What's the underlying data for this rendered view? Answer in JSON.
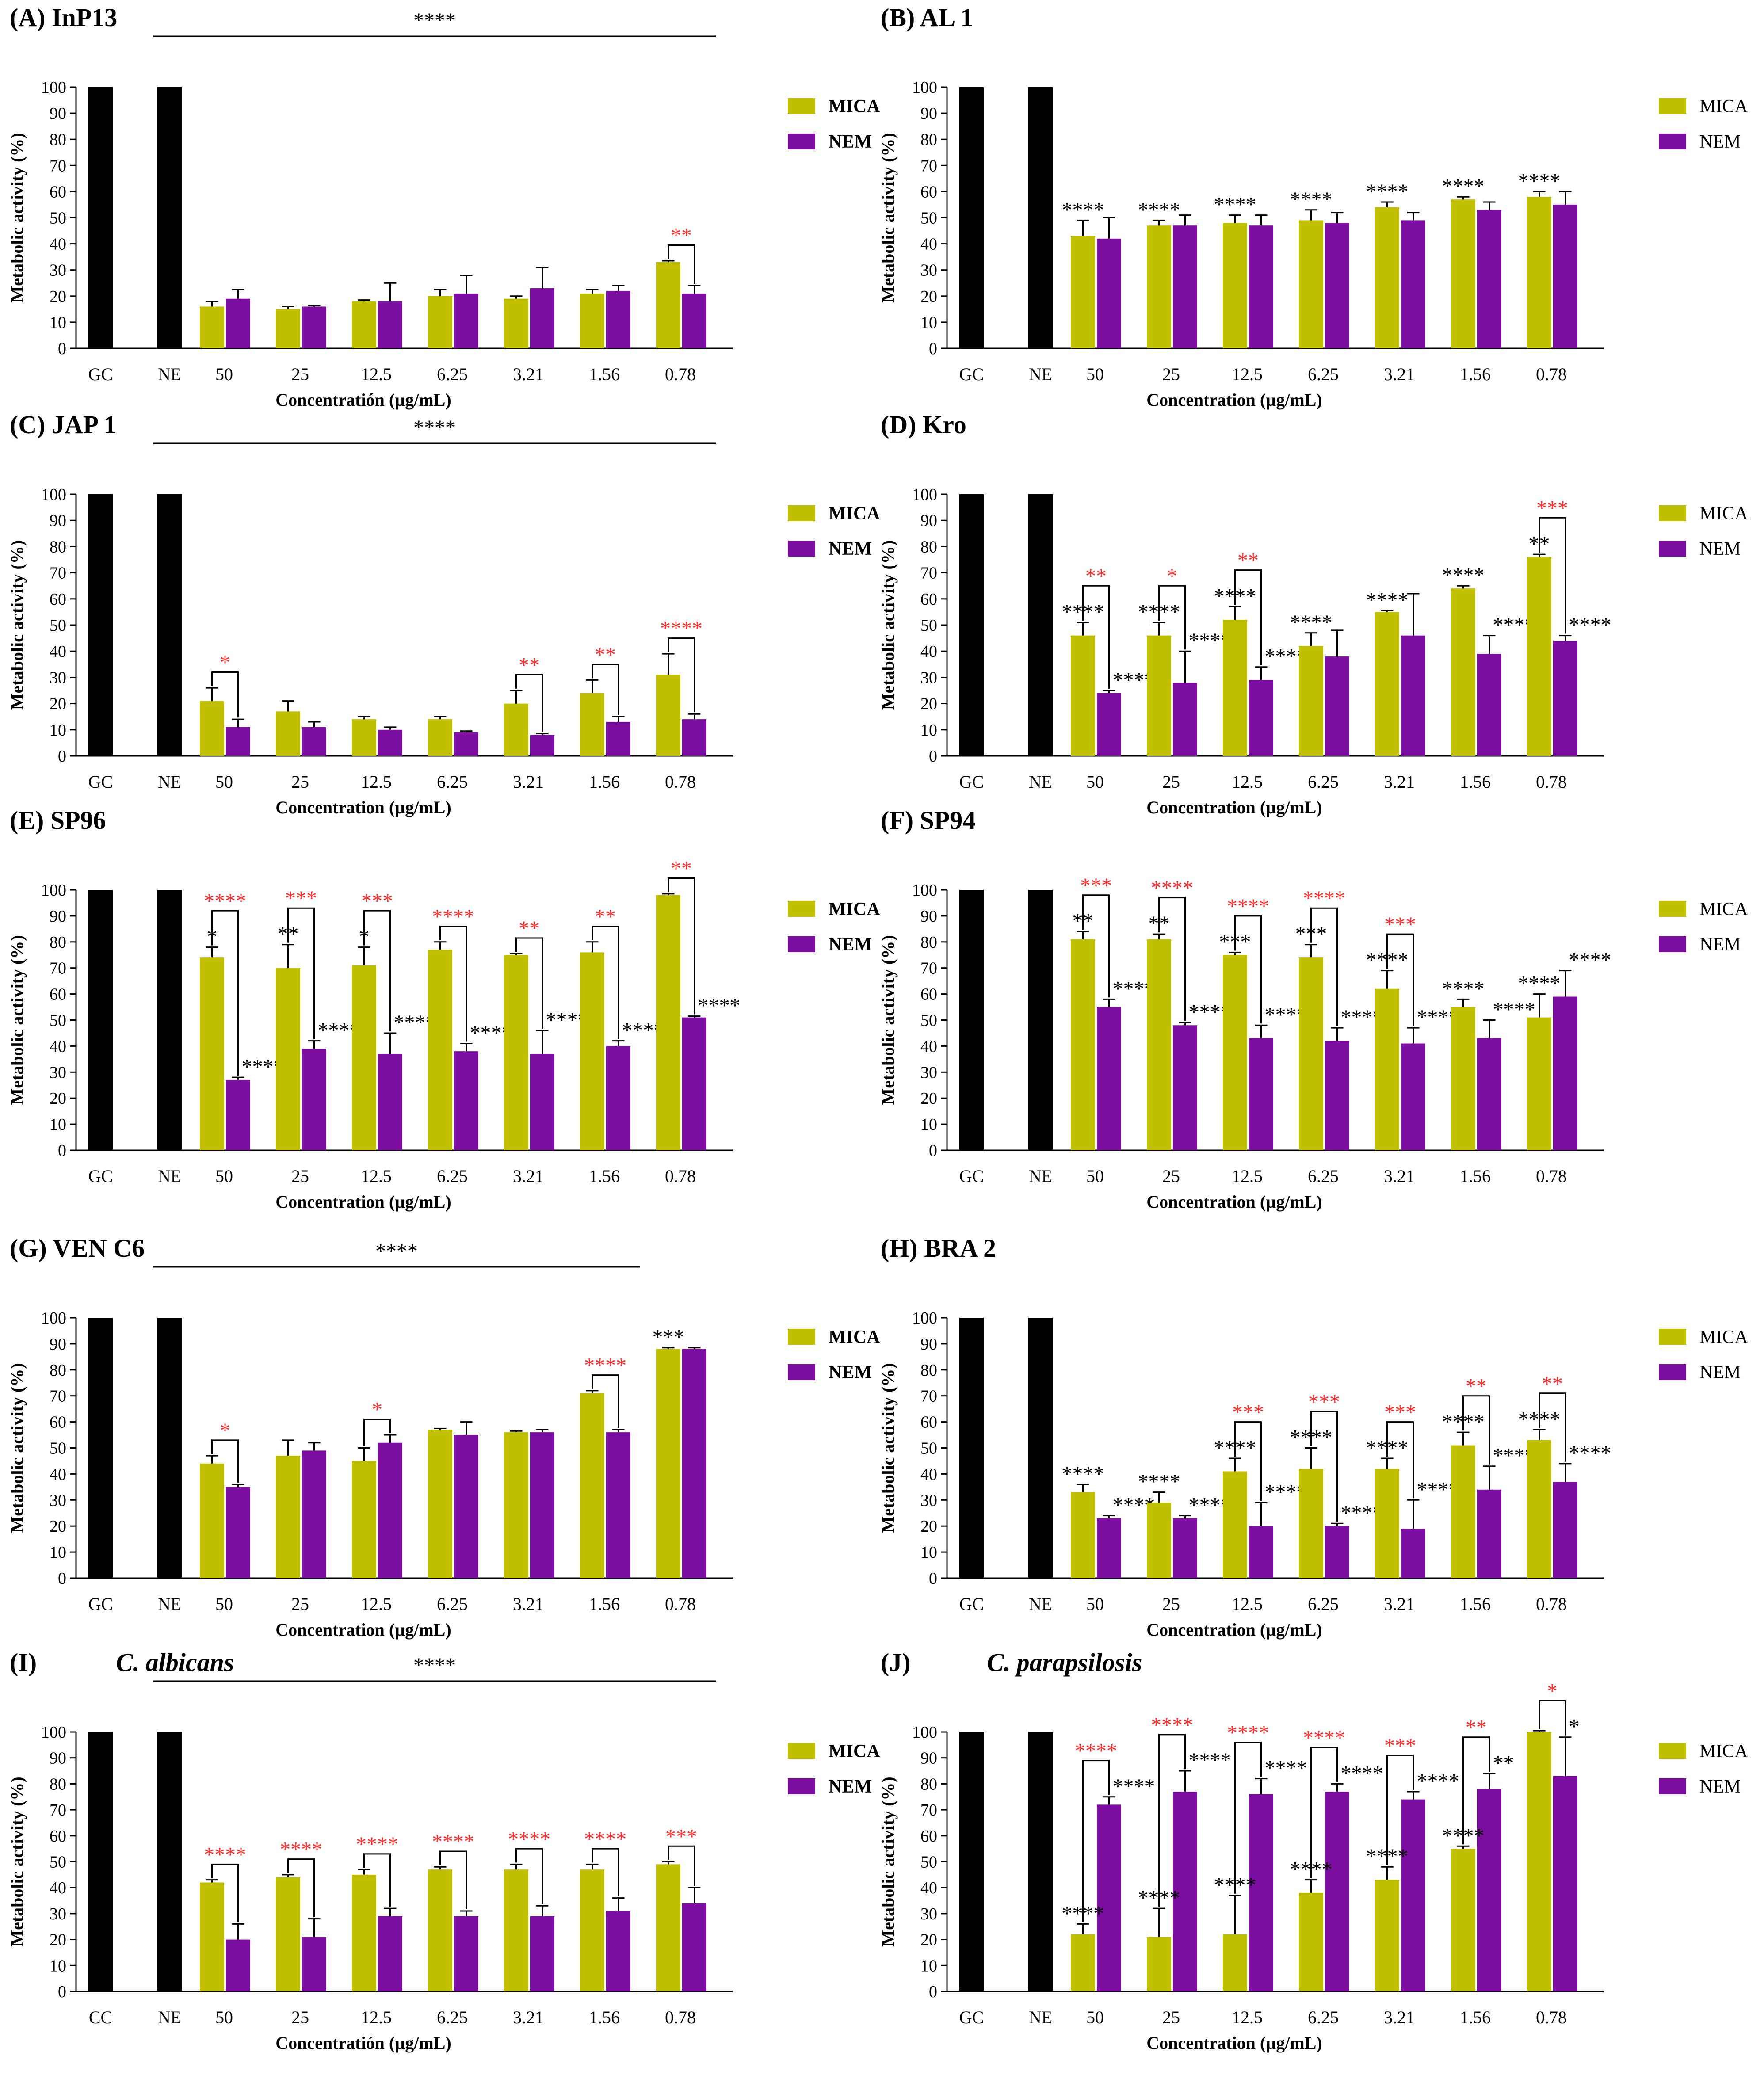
{
  "colors": {
    "control": "#000000",
    "mica": "#bfbf00",
    "nem": "#7b0da0",
    "sig_black": "#000000",
    "sig_red": "#ff3030"
  },
  "y_axis_label": "Metabolic activity (%)",
  "y_ticks": [
    "0",
    "10",
    "20",
    "30",
    "40",
    "50",
    "60",
    "70",
    "80",
    "90",
    "100"
  ],
  "chart_data": [
    {
      "id": "A",
      "title": "(A)  InP13",
      "type": "bar",
      "ylim": [
        0,
        100
      ],
      "xlabel": "Concentratión (µg/mL)",
      "ylabel": "Metabolic activity (%)",
      "controls": [
        {
          "label": "GC",
          "value": 100
        },
        {
          "label": "NE",
          "value": 100
        }
      ],
      "categories": [
        "50",
        "25",
        "12.5",
        "6.25",
        "3.21",
        "1.56",
        "0.78"
      ],
      "series": [
        {
          "name": "MICA",
          "values": [
            16,
            15,
            18,
            20,
            19,
            21,
            33
          ],
          "err": [
            2,
            1,
            0.5,
            2.5,
            1,
            1.5,
            0.5
          ]
        },
        {
          "name": "NEM",
          "values": [
            19,
            16,
            18,
            21,
            23,
            22,
            21
          ],
          "err": [
            3.5,
            0.5,
            7,
            7,
            8,
            2,
            3
          ]
        }
      ],
      "legend": {
        "mica": "MICA",
        "nem": "NEM",
        "bold": true
      },
      "overall": {
        "label": "****",
        "from": 0,
        "to": 6
      },
      "mica_marks": [
        "",
        "",
        "",
        "",
        "",
        "",
        ""
      ],
      "nem_marks": [
        "",
        "",
        "",
        "",
        "",
        "",
        ""
      ],
      "pair_marks": [
        "",
        "",
        "",
        "",
        "",
        "",
        "**"
      ]
    },
    {
      "id": "B",
      "title": "(B)  AL 1",
      "type": "bar",
      "ylim": [
        0,
        100
      ],
      "xlabel": "Concentration (µg/mL)",
      "ylabel": "Metabolic activity (%)",
      "controls": [
        {
          "label": "GC",
          "value": 100
        },
        {
          "label": "NE",
          "value": 100
        }
      ],
      "categories": [
        "50",
        "25",
        "12.5",
        "6.25",
        "3.21",
        "1.56",
        "0.78"
      ],
      "series": [
        {
          "name": "MICA",
          "values": [
            43,
            47,
            48,
            49,
            54,
            57,
            58
          ],
          "err": [
            6,
            2,
            3,
            4,
            2,
            1,
            2
          ]
        },
        {
          "name": "NEM",
          "values": [
            42,
            47,
            47,
            48,
            49,
            53,
            55
          ],
          "err": [
            8,
            4,
            4,
            4,
            3,
            3,
            5
          ]
        }
      ],
      "legend": {
        "mica": "MICA",
        "nem": "NEM",
        "bold": false
      },
      "overall": null,
      "mica_marks": [
        "****",
        "****",
        "****",
        "****",
        "****",
        "****",
        "****"
      ],
      "nem_marks": [
        "",
        "",
        "",
        "",
        "",
        "",
        ""
      ],
      "pair_marks": [
        "",
        "",
        "",
        "",
        "",
        "",
        ""
      ]
    },
    {
      "id": "C",
      "title": "(C)  JAP 1",
      "type": "bar",
      "ylim": [
        0,
        100
      ],
      "xlabel": "Concentration (µg/mL)",
      "ylabel": "Metabolic activity (%)",
      "controls": [
        {
          "label": "GC",
          "value": 100
        },
        {
          "label": "NE",
          "value": 100
        }
      ],
      "categories": [
        "50",
        "25",
        "12.5",
        "6.25",
        "3.21",
        "1.56",
        "0.78"
      ],
      "series": [
        {
          "name": "MICA",
          "values": [
            21,
            17,
            14,
            14,
            20,
            24,
            31
          ],
          "err": [
            5,
            4,
            1,
            1,
            5,
            5,
            8
          ]
        },
        {
          "name": "NEM",
          "values": [
            11,
            11,
            10,
            9,
            8,
            13,
            14
          ],
          "err": [
            3,
            2,
            1,
            0.5,
            0.5,
            2,
            2
          ]
        }
      ],
      "legend": {
        "mica": "MICA",
        "nem": "NEM",
        "bold": true
      },
      "overall": {
        "label": "****",
        "from": 0,
        "to": 6
      },
      "mica_marks": [
        "",
        "",
        "",
        "",
        "",
        "",
        ""
      ],
      "nem_marks": [
        "",
        "",
        "",
        "",
        "",
        "",
        ""
      ],
      "pair_marks": [
        "*",
        "",
        "",
        "",
        "**",
        "**",
        "****"
      ]
    },
    {
      "id": "D",
      "title": "(D)  Kro",
      "type": "bar",
      "ylim": [
        0,
        100
      ],
      "xlabel": "Concentration (µg/mL)",
      "ylabel": "Metabolic activity (%)",
      "controls": [
        {
          "label": "GC",
          "value": 100
        },
        {
          "label": "NE",
          "value": 100
        }
      ],
      "categories": [
        "50",
        "25",
        "12.5",
        "6.25",
        "3.21",
        "1.56",
        "0.78"
      ],
      "series": [
        {
          "name": "MICA",
          "values": [
            46,
            46,
            52,
            42,
            55,
            64,
            76
          ],
          "err": [
            5,
            5,
            5,
            5,
            0.5,
            1,
            1
          ]
        },
        {
          "name": "NEM",
          "values": [
            24,
            28,
            29,
            38,
            46,
            39,
            44
          ],
          "err": [
            1,
            12,
            5,
            10,
            16,
            7,
            2
          ]
        }
      ],
      "legend": {
        "mica": "MICA",
        "nem": "NEM",
        "bold": false
      },
      "overall": null,
      "mica_marks": [
        "****",
        "****",
        "****",
        "****",
        "****",
        "****",
        "**"
      ],
      "nem_marks": [
        "****",
        "****",
        "****",
        "",
        "",
        "****",
        "****"
      ],
      "pair_marks": [
        "**",
        "*",
        "**",
        "",
        "",
        "",
        "***"
      ]
    },
    {
      "id": "E",
      "title": "(E)  SP96",
      "type": "bar",
      "ylim": [
        0,
        100
      ],
      "xlabel": "Concentration (µg/mL)",
      "ylabel": "Metabolic activity (%)",
      "controls": [
        {
          "label": "GC",
          "value": 100
        },
        {
          "label": "NE",
          "value": 100
        }
      ],
      "categories": [
        "50",
        "25",
        "12.5",
        "6.25",
        "3.21",
        "1.56",
        "0.78"
      ],
      "series": [
        {
          "name": "MICA",
          "values": [
            74,
            70,
            71,
            77,
            75,
            76,
            98
          ],
          "err": [
            4,
            9,
            7,
            3,
            0.5,
            4,
            0.5
          ]
        },
        {
          "name": "NEM",
          "values": [
            27,
            39,
            37,
            38,
            37,
            40,
            51
          ],
          "err": [
            1,
            3,
            8,
            3,
            9,
            2,
            0.5
          ]
        }
      ],
      "legend": {
        "mica": "MICA",
        "nem": "NEM",
        "bold": true
      },
      "overall": null,
      "mica_marks": [
        "*",
        "**",
        "*",
        "",
        "",
        "",
        ""
      ],
      "nem_marks": [
        "****",
        "****",
        "****",
        "****",
        "****",
        "****",
        "****"
      ],
      "pair_marks": [
        "****",
        "***",
        "***",
        "****",
        "**",
        "**",
        "**"
      ]
    },
    {
      "id": "F",
      "title": "(F)  SP94",
      "type": "bar",
      "ylim": [
        0,
        100
      ],
      "xlabel": "Concentration (µg/mL)",
      "ylabel": "Metabolic activity (%)",
      "controls": [
        {
          "label": "GC",
          "value": 100
        },
        {
          "label": "NE",
          "value": 100
        }
      ],
      "categories": [
        "50",
        "25",
        "12.5",
        "6.25",
        "3.21",
        "1.56",
        "0.78"
      ],
      "series": [
        {
          "name": "MICA",
          "values": [
            81,
            81,
            75,
            74,
            62,
            55,
            51
          ],
          "err": [
            3,
            2,
            1,
            5,
            7,
            3,
            9
          ]
        },
        {
          "name": "NEM",
          "values": [
            55,
            48,
            43,
            42,
            41,
            43,
            59
          ],
          "err": [
            3,
            1,
            5,
            5,
            6,
            7,
            10
          ]
        }
      ],
      "legend": {
        "mica": "MICA",
        "nem": "NEM",
        "bold": false
      },
      "overall": null,
      "mica_marks": [
        "**",
        "**",
        "***",
        "***",
        "****",
        "****",
        "****"
      ],
      "nem_marks": [
        "****",
        "****",
        "****",
        "****",
        "****",
        "****",
        "****"
      ],
      "pair_marks": [
        "***",
        "****",
        "****",
        "****",
        "***",
        "",
        ""
      ]
    },
    {
      "id": "G",
      "title": "(G)  VEN C6",
      "type": "bar",
      "ylim": [
        0,
        100
      ],
      "xlabel": "Concentration (µg/mL)",
      "ylabel": "Metabolic activity (%)",
      "controls": [
        {
          "label": "GC",
          "value": 100
        },
        {
          "label": "NE",
          "value": 100
        }
      ],
      "categories": [
        "50",
        "25",
        "12.5",
        "6.25",
        "3.21",
        "1.56",
        "0.78"
      ],
      "series": [
        {
          "name": "MICA",
          "values": [
            44,
            47,
            45,
            57,
            56,
            71,
            88
          ],
          "err": [
            3,
            6,
            5,
            0.5,
            0.5,
            1,
            0.5
          ]
        },
        {
          "name": "NEM",
          "values": [
            35,
            49,
            52,
            55,
            56,
            56,
            88
          ],
          "err": [
            1,
            3,
            3,
            5,
            1,
            1,
            0.5
          ]
        }
      ],
      "legend": {
        "mica": "MICA",
        "nem": "NEM",
        "bold": true
      },
      "overall": {
        "label": "****",
        "from": 0,
        "to": 5
      },
      "mica_marks": [
        "",
        "",
        "",
        "",
        "",
        "",
        "***"
      ],
      "nem_marks": [
        "",
        "",
        "",
        "",
        "",
        "",
        ""
      ],
      "pair_marks": [
        "*",
        "",
        "*",
        "",
        "",
        "****",
        ""
      ]
    },
    {
      "id": "H",
      "title": "(H)  BRA 2",
      "type": "bar",
      "ylim": [
        0,
        100
      ],
      "xlabel": "Concentration (µg/mL)",
      "ylabel": "Metabolic activity (%)",
      "controls": [
        {
          "label": "GC",
          "value": 100
        },
        {
          "label": "NE",
          "value": 100
        }
      ],
      "categories": [
        "50",
        "25",
        "12.5",
        "6.25",
        "3.21",
        "1.56",
        "0.78"
      ],
      "series": [
        {
          "name": "MICA",
          "values": [
            33,
            29,
            41,
            42,
            42,
            51,
            53
          ],
          "err": [
            3,
            4,
            5,
            8,
            4,
            5,
            4
          ]
        },
        {
          "name": "NEM",
          "values": [
            23,
            23,
            20,
            20,
            19,
            34,
            37
          ],
          "err": [
            1,
            1,
            9,
            1,
            11,
            9,
            7
          ]
        }
      ],
      "legend": {
        "mica": "MICA",
        "nem": "NEM",
        "bold": false
      },
      "overall": null,
      "mica_marks": [
        "****",
        "****",
        "****",
        "****",
        "****",
        "****",
        "****"
      ],
      "nem_marks": [
        "****",
        "****",
        "****",
        "****",
        "****",
        "****",
        "****"
      ],
      "pair_marks": [
        "",
        "",
        "***",
        "***",
        "***",
        "**",
        "**"
      ]
    },
    {
      "id": "I",
      "title": "(I)",
      "title_italic": "C. albicans",
      "type": "bar",
      "ylim": [
        0,
        100
      ],
      "xlabel": "Concentratión (µg/mL)",
      "ylabel": "Metabolic activity (%)",
      "controls": [
        {
          "label": "CC",
          "value": 100
        },
        {
          "label": "NE",
          "value": 100
        }
      ],
      "categories": [
        "50",
        "25",
        "12.5",
        "6.25",
        "3.21",
        "1.56",
        "0.78"
      ],
      "series": [
        {
          "name": "MICA",
          "values": [
            42,
            44,
            45,
            47,
            47,
            47,
            49
          ],
          "err": [
            1,
            1,
            2,
            1,
            2,
            2,
            1
          ]
        },
        {
          "name": "NEM",
          "values": [
            20,
            21,
            29,
            29,
            29,
            31,
            34
          ],
          "err": [
            6,
            7,
            3,
            2,
            4,
            5,
            6
          ]
        }
      ],
      "legend": {
        "mica": "MICA",
        "nem": "NEM",
        "bold": true
      },
      "overall": {
        "label": "****",
        "from": 0,
        "to": 6
      },
      "mica_marks": [
        "",
        "",
        "",
        "",
        "",
        "",
        ""
      ],
      "nem_marks": [
        "",
        "",
        "",
        "",
        "",
        "",
        ""
      ],
      "pair_marks": [
        "****",
        "****",
        "****",
        "****",
        "****",
        "****",
        "***"
      ]
    },
    {
      "id": "J",
      "title": "(J)",
      "title_italic": "C. parapsilosis",
      "type": "bar",
      "ylim": [
        0,
        100
      ],
      "xlabel": "Concentration (µg/mL)",
      "ylabel": "Metabolic activity (%)",
      "controls": [
        {
          "label": "GC",
          "value": 100
        },
        {
          "label": "NE",
          "value": 100
        }
      ],
      "categories": [
        "50",
        "25",
        "12.5",
        "6.25",
        "3.21",
        "1.56",
        "0.78"
      ],
      "series": [
        {
          "name": "MICA",
          "values": [
            22,
            21,
            22,
            38,
            43,
            55,
            100
          ],
          "err": [
            4,
            11,
            15,
            5,
            5,
            1,
            0.5
          ]
        },
        {
          "name": "NEM",
          "values": [
            72,
            77,
            76,
            77,
            74,
            78,
            83
          ],
          "err": [
            3,
            8,
            6,
            3,
            3,
            6,
            15
          ]
        }
      ],
      "legend": {
        "mica": "MICA",
        "nem": "NEM",
        "bold": false
      },
      "overall": null,
      "mica_marks": [
        "****",
        "****",
        "****",
        "****",
        "****",
        "****",
        ""
      ],
      "nem_marks": [
        "****",
        "****",
        "****",
        "****",
        "****",
        "**",
        "*"
      ],
      "pair_marks": [
        "****",
        "****",
        "****",
        "****",
        "***",
        "**",
        "*"
      ]
    }
  ]
}
